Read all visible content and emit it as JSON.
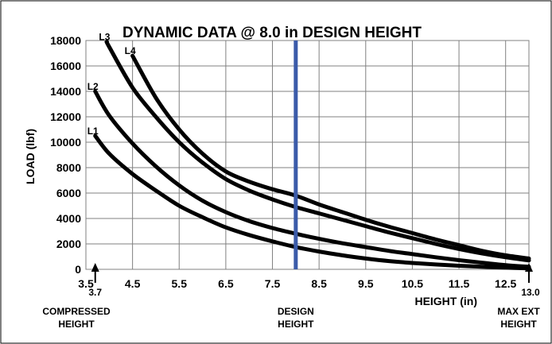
{
  "chart_data": {
    "type": "line",
    "title": "DYNAMIC DATA @ 8.0 in DESIGN HEIGHT",
    "xlabel": "HEIGHT (in)",
    "ylabel": "LOAD (lbf)",
    "xlim": [
      3.5,
      13.0
    ],
    "ylim": [
      0,
      18000
    ],
    "x_ticks": [
      "3.5",
      "4.5",
      "5.5",
      "6.5",
      "7.5",
      "8.5",
      "9.5",
      "10.5",
      "11.5",
      "12.5"
    ],
    "y_ticks": [
      "0",
      "2000",
      "4000",
      "6000",
      "8000",
      "10000",
      "12000",
      "14000",
      "16000",
      "18000"
    ],
    "grid": true,
    "series": [
      {
        "name": "L1",
        "color": "#000000",
        "x": [
          3.7,
          4.0,
          4.5,
          5.0,
          5.5,
          6.0,
          6.5,
          7.0,
          7.5,
          8.0,
          8.5,
          9.0,
          9.5,
          10.0,
          10.5,
          11.0,
          11.5,
          12.0,
          12.5,
          13.0
        ],
        "y": [
          10500,
          9100,
          7500,
          6200,
          5000,
          4100,
          3300,
          2700,
          2200,
          1750,
          1400,
          1100,
          850,
          650,
          500,
          380,
          280,
          200,
          130,
          80
        ]
      },
      {
        "name": "L2",
        "color": "#000000",
        "x": [
          3.7,
          4.0,
          4.5,
          5.0,
          5.5,
          6.0,
          6.5,
          7.0,
          7.5,
          8.0,
          8.5,
          9.0,
          9.5,
          10.0,
          10.5,
          11.0,
          11.5,
          12.0,
          12.5,
          13.0
        ],
        "y": [
          14000,
          12100,
          9900,
          8100,
          6600,
          5400,
          4500,
          3800,
          3250,
          2800,
          2400,
          2050,
          1750,
          1450,
          1200,
          950,
          720,
          520,
          330,
          200
        ]
      },
      {
        "name": "L3",
        "color": "#000000",
        "x": [
          3.95,
          4.0,
          4.5,
          5.0,
          5.5,
          6.0,
          6.5,
          7.0,
          7.5,
          8.0,
          8.5,
          9.0,
          9.5,
          10.0,
          10.5,
          11.0,
          11.5,
          12.0,
          12.5,
          13.0
        ],
        "y": [
          17900,
          17500,
          14300,
          12000,
          10000,
          8400,
          7100,
          6200,
          5500,
          4900,
          4400,
          3900,
          3400,
          2900,
          2450,
          2000,
          1600,
          1250,
          950,
          700
        ]
      },
      {
        "name": "L4",
        "color": "#000000",
        "x": [
          4.5,
          5.0,
          5.5,
          6.0,
          6.5,
          7.0,
          7.5,
          8.0,
          8.5,
          9.0,
          9.5,
          10.0,
          10.5,
          11.0,
          11.5,
          12.0,
          12.5,
          13.0
        ],
        "y": [
          16800,
          13500,
          11000,
          9100,
          7700,
          6900,
          6300,
          5800,
          5100,
          4500,
          3900,
          3350,
          2850,
          2350,
          1900,
          1450,
          1100,
          850
        ]
      }
    ],
    "reference_line": {
      "x": 8.0,
      "color": "#3B5BA9"
    },
    "annotations": {
      "compressed": {
        "x": 3.7,
        "value": "3.7",
        "line1": "COMPRESSED",
        "line2": "HEIGHT"
      },
      "design": {
        "x": 8.0,
        "line1": "DESIGN",
        "line2": "HEIGHT"
      },
      "max_ext": {
        "x": 13.0,
        "value": "13.0",
        "line1": "MAX EXT",
        "line2": "HEIGHT"
      }
    }
  }
}
